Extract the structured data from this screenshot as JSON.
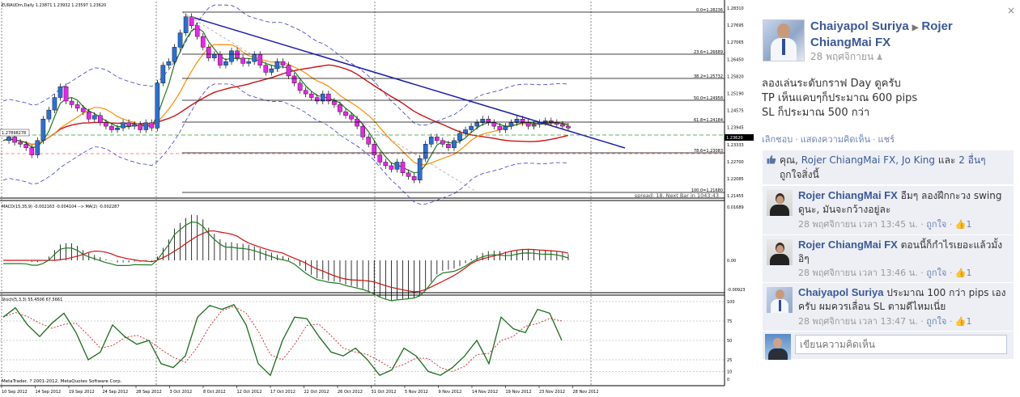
{
  "chart": {
    "title": "EURAUDm,Daily  1.23871 1.23932 1.23597 1.23620",
    "left_price_tag": "1.27898278",
    "spread_text": "spread: 18. Next Bar in 1043:43",
    "copyright": "MetaTrader, ? 2001-2012, MetaQuotes Software Corp.",
    "macd_label": "MACD(15,35,9) -0.002163 -0.004104 --> MA(2) -0.002287",
    "stoch_label": "Stoch(5,3,3) 55.4506 67.5661",
    "price_axis": [
      "1.28310",
      "1.27695",
      "1.27065",
      "1.26450",
      "1.25820",
      "1.25190",
      "1.24575",
      "1.23945",
      "1.23333",
      "1.22700",
      "1.22085",
      "1.21455"
    ],
    "current_price": "1.23620",
    "fib_levels": [
      "0.0=1.28236",
      "23.6=1.26689",
      "38.2=1.25732",
      "50.0=1.24958",
      "61.8=1.24184",
      "78.6=1.23083",
      "100.0=1.21680"
    ],
    "macd_axis": [
      "0.01689",
      "0.00",
      "-0.00923"
    ],
    "stoch_axis": [
      "100",
      "75",
      "50",
      "25",
      "10",
      "0"
    ],
    "date_axis": [
      "10 Sep 2012",
      "14 Sep 2012",
      "19 Sep 2012",
      "24 Sep 2012",
      "28 Sep 2012",
      "3 Oct 2012",
      "8 Oct 2012",
      "12 Oct 2012",
      "17 Oct 2012",
      "22 Oct 2012",
      "26 Oct 2012",
      "31 Oct 2012",
      "5 Nov 2012",
      "9 Nov 2012",
      "14 Nov 2012",
      "19 Nov 2012",
      "23 Nov 2012",
      "28 Nov 2012"
    ],
    "colors": {
      "bull": "#2a6fd6",
      "bear": "#ee22ee",
      "ema_fast": "#1f7a1f",
      "ema_mid": "#ff8c00",
      "ema_slow": "#cc1111",
      "trendline": "#1a1aaa",
      "bands": "#3a3ac0",
      "stoch_main": "#1a6b1a",
      "stoch_signal": "#cc2222"
    }
  },
  "post": {
    "author": "Chaiyapol Suriya",
    "target": "Rojer ChiangMai FX",
    "time": "28 พฤศจิกายน",
    "lines": [
      "ลองเล่นระดับกราฟ Day ดูครับ",
      "TP เห็นแคบๆก็ประมาณ 600 pips",
      "SL ก็ประมาณ 500 กว่า"
    ],
    "actions": [
      "เลิกชอบ",
      "แสดงความคิดเห็น",
      "แชร์"
    ]
  },
  "likes": {
    "prefix": "คุณ, ",
    "names": "Rojer ChiangMai FX, Jo King",
    "mid": " และ ",
    "others": "2 อื่นๆ",
    "suffix": " ถูกใจสิ่งนี้"
  },
  "comments": [
    {
      "author": "Rojer ChiangMai FX",
      "text": " อืมๆ ลองฝึกกะวง swing ดูนะ, มันจะกว้างอยู่ละ",
      "time": "28 พฤศจิกายน เวลา 13:45 น.",
      "like": "ถูกใจ",
      "count": "1"
    },
    {
      "author": "Rojer ChiangMai FX",
      "text": " ตอนนี้ก็กำไรเยอะแล้วมั้ง อิๆ",
      "time": "28 พฤศจิกายน เวลา 13:46 น.",
      "like": "ถูกใจ",
      "count": "1"
    },
    {
      "author": "Chaiyapol Suriya",
      "text": " ประมาณ 100 กว่า pips เองครับ ผมควรเลื่อน SL ตามดีไหมเนี่ย",
      "time": "28 พฤศจิกายน เวลา 13:47 น.",
      "like": "ถูกใจ",
      "count": "1"
    }
  ],
  "write_placeholder": "เขียนความคิดเห็น",
  "corner_close": "×"
}
